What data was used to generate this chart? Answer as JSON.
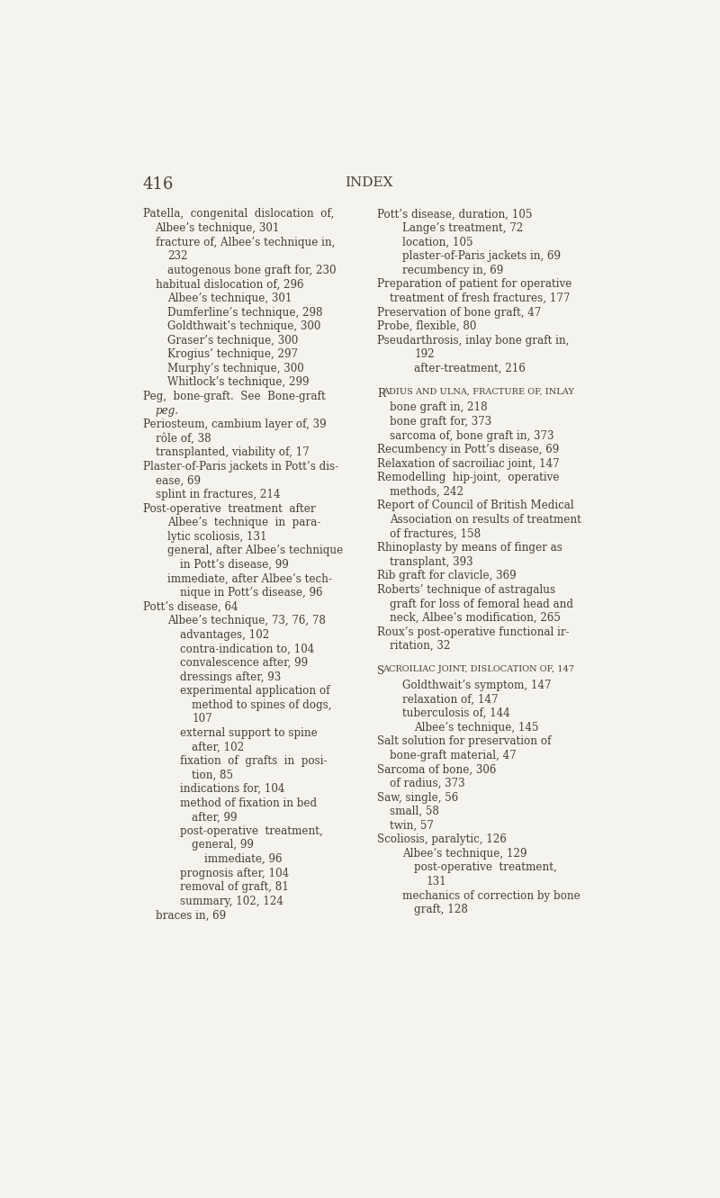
{
  "bg_color": "#f5f3ee",
  "text_color": "#4a3f35",
  "page_number": "416",
  "header": "INDEX",
  "left_column": [
    {
      "text": "Patella,  congenital  dislocation  of,",
      "indent": 0,
      "style": "normal"
    },
    {
      "text": "Albee’s technique, 301",
      "indent": 1,
      "style": "normal"
    },
    {
      "text": "fracture of, Albee’s technique in,",
      "indent": 1,
      "style": "normal"
    },
    {
      "text": "232",
      "indent": 2,
      "style": "normal"
    },
    {
      "text": "autogenous bone graft for, 230",
      "indent": 2,
      "style": "normal"
    },
    {
      "text": "habitual dislocation of, 296",
      "indent": 1,
      "style": "normal"
    },
    {
      "text": "Albee’s technique, 301",
      "indent": 2,
      "style": "normal"
    },
    {
      "text": "Dumferline’s technique, 298",
      "indent": 2,
      "style": "normal"
    },
    {
      "text": "Goldthwait’s technique, 300",
      "indent": 2,
      "style": "normal"
    },
    {
      "text": "Graser’s technique, 300",
      "indent": 2,
      "style": "normal"
    },
    {
      "text": "Krogius’ technique, 297",
      "indent": 2,
      "style": "normal"
    },
    {
      "text": "Murphy’s technique, 300",
      "indent": 2,
      "style": "normal"
    },
    {
      "text": "Whitlock’s technique, 299",
      "indent": 2,
      "style": "normal"
    },
    {
      "text": "Peg,  bone-graft.  See  Bone-graft",
      "indent": 0,
      "style": "normal"
    },
    {
      "text": "peg.",
      "indent": 1,
      "style": "italic"
    },
    {
      "text": "Periosteum, cambium layer of, 39",
      "indent": 0,
      "style": "normal"
    },
    {
      "text": "rôle of, 38",
      "indent": 1,
      "style": "normal"
    },
    {
      "text": "transplanted, viability of, 17",
      "indent": 1,
      "style": "normal"
    },
    {
      "text": "Plaster-of-Paris jackets in Pott’s dis-",
      "indent": 0,
      "style": "normal"
    },
    {
      "text": "ease, 69",
      "indent": 1,
      "style": "normal"
    },
    {
      "text": "splint in fractures, 214",
      "indent": 1,
      "style": "normal"
    },
    {
      "text": "Post-operative  treatment  after",
      "indent": 0,
      "style": "normal"
    },
    {
      "text": "Albee’s  technique  in  para-",
      "indent": 2,
      "style": "normal"
    },
    {
      "text": "lytic scoliosis, 131",
      "indent": 2,
      "style": "normal"
    },
    {
      "text": "general, after Albee’s technique",
      "indent": 2,
      "style": "normal"
    },
    {
      "text": "in Pott’s disease, 99",
      "indent": 3,
      "style": "normal"
    },
    {
      "text": "immediate, after Albee’s tech-",
      "indent": 2,
      "style": "normal"
    },
    {
      "text": "nique in Pott’s disease, 96",
      "indent": 3,
      "style": "normal"
    },
    {
      "text": "Pott’s disease, 64",
      "indent": 0,
      "style": "normal"
    },
    {
      "text": "Albee’s technique, 73, 76, 78",
      "indent": 2,
      "style": "normal"
    },
    {
      "text": "advantages, 102",
      "indent": 3,
      "style": "normal"
    },
    {
      "text": "contra-indication to, 104",
      "indent": 3,
      "style": "normal"
    },
    {
      "text": "convalescence after, 99",
      "indent": 3,
      "style": "normal"
    },
    {
      "text": "dressings after, 93",
      "indent": 3,
      "style": "normal"
    },
    {
      "text": "experimental application of",
      "indent": 3,
      "style": "normal"
    },
    {
      "text": "method to spines of dogs,",
      "indent": 4,
      "style": "normal"
    },
    {
      "text": "107",
      "indent": 4,
      "style": "normal"
    },
    {
      "text": "external support to spine",
      "indent": 3,
      "style": "normal"
    },
    {
      "text": "after, 102",
      "indent": 4,
      "style": "normal"
    },
    {
      "text": "fixation  of  grafts  in  posi-",
      "indent": 3,
      "style": "normal"
    },
    {
      "text": "tion, 85",
      "indent": 4,
      "style": "normal"
    },
    {
      "text": "indications for, 104",
      "indent": 3,
      "style": "normal"
    },
    {
      "text": "method of fixation in bed",
      "indent": 3,
      "style": "normal"
    },
    {
      "text": "after, 99",
      "indent": 4,
      "style": "normal"
    },
    {
      "text": "post-operative  treatment,",
      "indent": 3,
      "style": "normal"
    },
    {
      "text": "general, 99",
      "indent": 4,
      "style": "normal"
    },
    {
      "text": "immediate, 96",
      "indent": 5,
      "style": "normal"
    },
    {
      "text": "prognosis after, 104",
      "indent": 3,
      "style": "normal"
    },
    {
      "text": "removal of graft, 81",
      "indent": 3,
      "style": "normal"
    },
    {
      "text": "summary, 102, 124",
      "indent": 3,
      "style": "normal"
    },
    {
      "text": "braces in, 69",
      "indent": 1,
      "style": "normal"
    }
  ],
  "right_column": [
    {
      "text": "Pott’s disease, duration, 105",
      "indent": 0,
      "style": "normal"
    },
    {
      "text": "Lange’s treatment, 72",
      "indent": 2,
      "style": "normal"
    },
    {
      "text": "location, 105",
      "indent": 2,
      "style": "normal"
    },
    {
      "text": "plaster-of-Paris jackets in, 69",
      "indent": 2,
      "style": "normal"
    },
    {
      "text": "recumbency in, 69",
      "indent": 2,
      "style": "normal"
    },
    {
      "text": "Preparation of patient for operative",
      "indent": 0,
      "style": "normal"
    },
    {
      "text": "treatment of fresh fractures, 177",
      "indent": 1,
      "style": "normal"
    },
    {
      "text": "Preservation of bone graft, 47",
      "indent": 0,
      "style": "normal"
    },
    {
      "text": "Probe, flexible, 80",
      "indent": 0,
      "style": "normal"
    },
    {
      "text": "Pseudarthrosis, inlay bone graft in,",
      "indent": 0,
      "style": "normal"
    },
    {
      "text": "192",
      "indent": 3,
      "style": "normal"
    },
    {
      "text": "after-treatment, 216",
      "indent": 3,
      "style": "normal"
    },
    {
      "text": "",
      "indent": 0,
      "style": "normal"
    },
    {
      "text": "Radius and ulna, fracture of, inlay",
      "indent": 0,
      "style": "smallcaps"
    },
    {
      "text": "bone graft in, 218",
      "indent": 1,
      "style": "normal"
    },
    {
      "text": "bone graft for, 373",
      "indent": 1,
      "style": "normal"
    },
    {
      "text": "sarcoma of, bone graft in, 373",
      "indent": 1,
      "style": "normal"
    },
    {
      "text": "Recumbency in Pott’s disease, 69",
      "indent": 0,
      "style": "normal"
    },
    {
      "text": "Relaxation of sacroiliac joint, 147",
      "indent": 0,
      "style": "normal"
    },
    {
      "text": "Remodelling  hip-joint,  operative",
      "indent": 0,
      "style": "normal"
    },
    {
      "text": "methods, 242",
      "indent": 1,
      "style": "normal"
    },
    {
      "text": "Report of Council of British Medical",
      "indent": 0,
      "style": "normal"
    },
    {
      "text": "Association on results of treatment",
      "indent": 1,
      "style": "normal"
    },
    {
      "text": "of fractures, 158",
      "indent": 1,
      "style": "normal"
    },
    {
      "text": "Rhinoplasty by means of finger as",
      "indent": 0,
      "style": "normal"
    },
    {
      "text": "transplant, 393",
      "indent": 1,
      "style": "normal"
    },
    {
      "text": "Rib graft for clavicle, 369",
      "indent": 0,
      "style": "normal"
    },
    {
      "text": "Roberts’ technique of astragalus",
      "indent": 0,
      "style": "normal"
    },
    {
      "text": "graft for loss of femoral head and",
      "indent": 1,
      "style": "normal"
    },
    {
      "text": "neck, Albee’s modification, 265",
      "indent": 1,
      "style": "normal"
    },
    {
      "text": "Roux’s post-operative functional ir-",
      "indent": 0,
      "style": "normal"
    },
    {
      "text": "ritation, 32",
      "indent": 1,
      "style": "normal"
    },
    {
      "text": "",
      "indent": 0,
      "style": "normal"
    },
    {
      "text": "Sacroiliac joint, dislocation of, 147",
      "indent": 0,
      "style": "smallcaps"
    },
    {
      "text": "Goldthwait’s symptom, 147",
      "indent": 2,
      "style": "normal"
    },
    {
      "text": "relaxation of, 147",
      "indent": 2,
      "style": "normal"
    },
    {
      "text": "tuberculosis of, 144",
      "indent": 2,
      "style": "normal"
    },
    {
      "text": "Albee’s technique, 145",
      "indent": 3,
      "style": "normal"
    },
    {
      "text": "Salt solution for preservation of",
      "indent": 0,
      "style": "normal"
    },
    {
      "text": "bone-graft material, 47",
      "indent": 1,
      "style": "normal"
    },
    {
      "text": "Sarcoma of bone, 306",
      "indent": 0,
      "style": "normal"
    },
    {
      "text": "of radius, 373",
      "indent": 1,
      "style": "normal"
    },
    {
      "text": "Saw, single, 56",
      "indent": 0,
      "style": "normal"
    },
    {
      "text": "small, 58",
      "indent": 1,
      "style": "normal"
    },
    {
      "text": "twin, 57",
      "indent": 1,
      "style": "normal"
    },
    {
      "text": "Scoliosis, paralytic, 126",
      "indent": 0,
      "style": "normal"
    },
    {
      "text": "Albee’s technique, 129",
      "indent": 2,
      "style": "normal"
    },
    {
      "text": "post-operative  treatment,",
      "indent": 3,
      "style": "normal"
    },
    {
      "text": "131",
      "indent": 4,
      "style": "normal"
    },
    {
      "text": "mechanics of correction by bone",
      "indent": 2,
      "style": "normal"
    },
    {
      "text": "graft, 128",
      "indent": 3,
      "style": "normal"
    }
  ]
}
